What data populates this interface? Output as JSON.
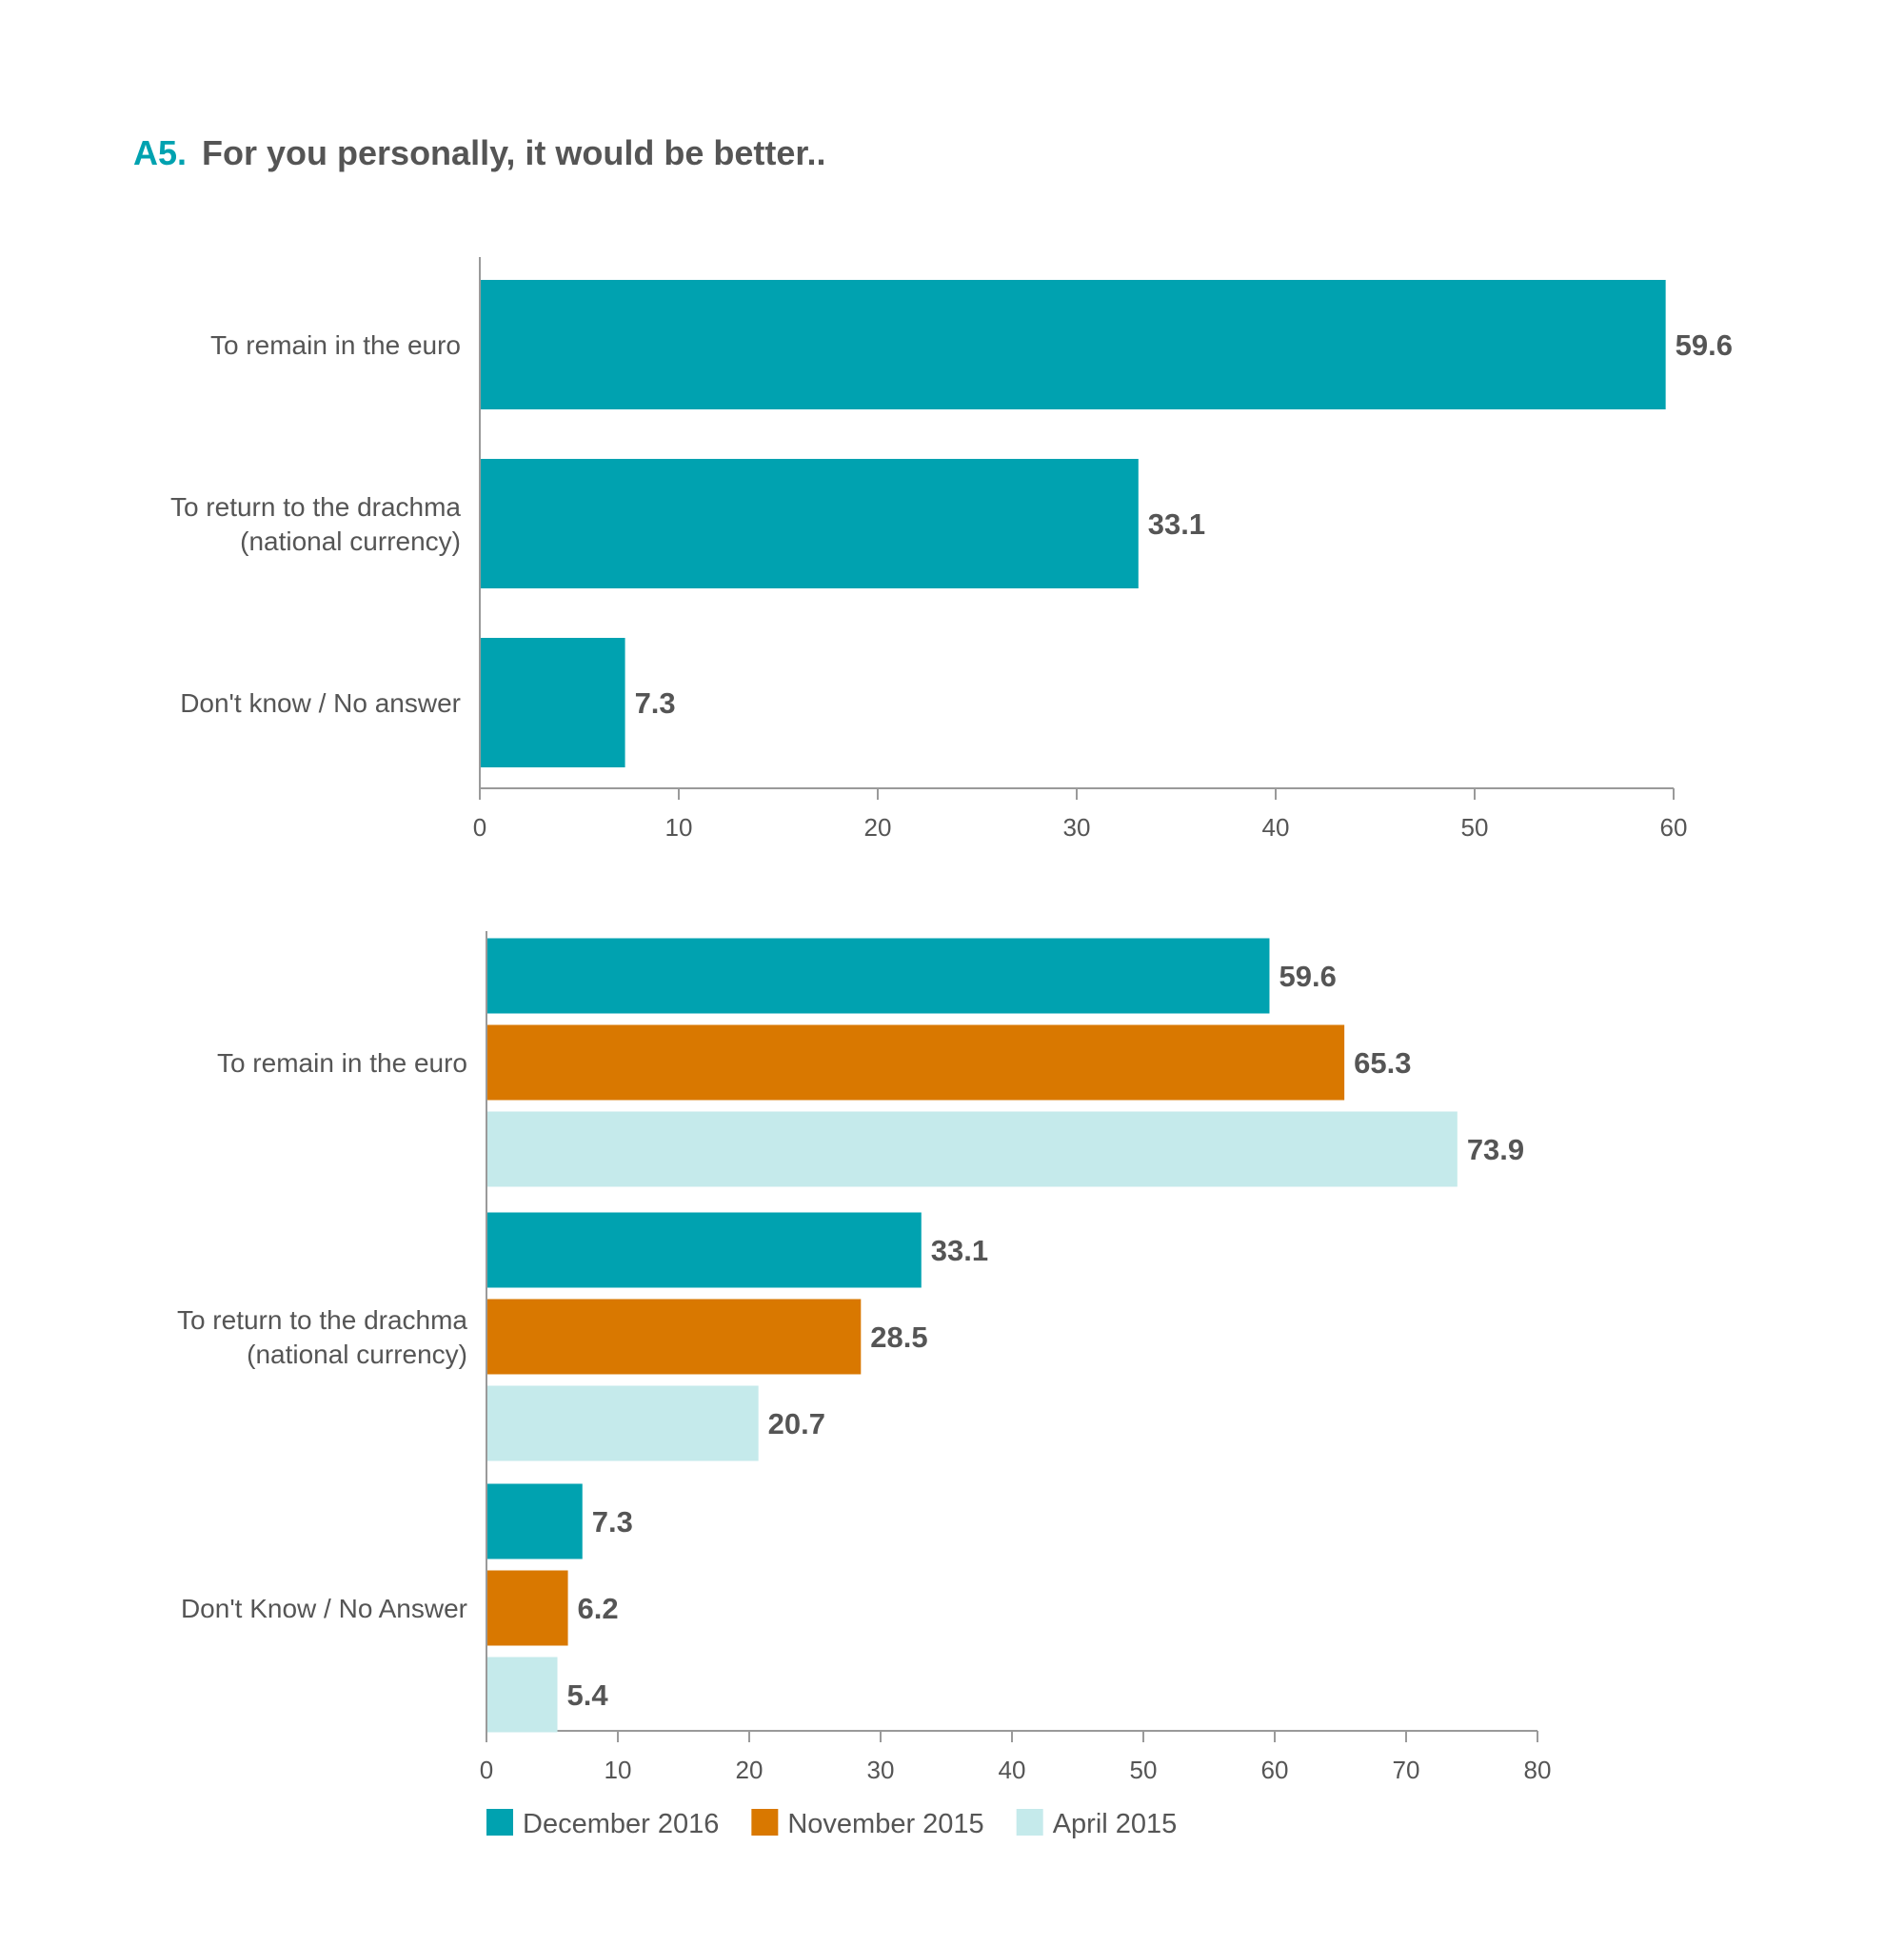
{
  "header": {
    "number": "A5.",
    "question": "For you personally, it would be better.."
  },
  "chart_data": [
    {
      "type": "bar",
      "orientation": "horizontal",
      "categories": [
        [
          "To remain in the euro"
        ],
        [
          "To return to the drachma",
          "(national currency)"
        ],
        [
          "Don't know / No answer"
        ]
      ],
      "series": [
        {
          "values": [
            59.6,
            33.1,
            7.3
          ],
          "color": "#00a2b0"
        }
      ],
      "xlim": [
        0,
        60
      ],
      "xticks": [
        0,
        10,
        20,
        30,
        40,
        50,
        60
      ],
      "grid": false
    },
    {
      "type": "bar",
      "orientation": "horizontal",
      "categories": [
        [
          "To remain in the euro"
        ],
        [
          "To return to the drachma",
          "(national currency)"
        ],
        [
          "Don't Know / No Answer"
        ]
      ],
      "series": [
        {
          "name": "December 2016",
          "values": [
            59.6,
            33.1,
            7.3
          ],
          "color": "#00a2b0"
        },
        {
          "name": "November 2015",
          "values": [
            65.3,
            28.5,
            6.2
          ],
          "color": "#d97800"
        },
        {
          "name": "April 2015",
          "values": [
            73.9,
            20.7,
            5.4
          ],
          "color": "#c5eaeb"
        }
      ],
      "xlim": [
        0,
        80
      ],
      "xticks": [
        0,
        10,
        20,
        30,
        40,
        50,
        60,
        70,
        80
      ],
      "grid": false,
      "legend": "bottom-left"
    }
  ]
}
